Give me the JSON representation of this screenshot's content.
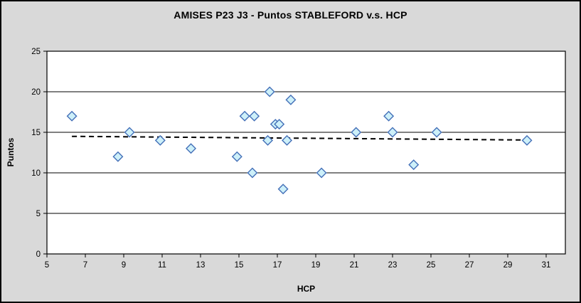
{
  "chart_data": {
    "type": "scatter",
    "title": "AMISES P23 J3 - Puntos STABLEFORD v.s. HCP",
    "xlabel": "HCP",
    "ylabel": "Puntos",
    "xlim": [
      5,
      32
    ],
    "ylim": [
      0,
      25
    ],
    "x_ticks": [
      5,
      7,
      9,
      11,
      13,
      15,
      17,
      19,
      21,
      23,
      25,
      27,
      29,
      31
    ],
    "y_ticks": [
      0,
      5,
      10,
      15,
      20,
      25
    ],
    "grid": "horizontal",
    "legend": "none",
    "points": [
      [
        6.3,
        17
      ],
      [
        8.7,
        12
      ],
      [
        9.3,
        15
      ],
      [
        10.9,
        14
      ],
      [
        12.5,
        13
      ],
      [
        14.9,
        12
      ],
      [
        15.3,
        17
      ],
      [
        15.7,
        10
      ],
      [
        15.8,
        17
      ],
      [
        16.5,
        14
      ],
      [
        16.6,
        20
      ],
      [
        16.9,
        16
      ],
      [
        17.1,
        16
      ],
      [
        17.3,
        8
      ],
      [
        17.5,
        14
      ],
      [
        17.7,
        19
      ],
      [
        19.3,
        10
      ],
      [
        21.1,
        15
      ],
      [
        22.8,
        17
      ],
      [
        23.0,
        15
      ],
      [
        24.1,
        11
      ],
      [
        25.3,
        15
      ],
      [
        30.0,
        14
      ]
    ],
    "trendline": {
      "style": "dashed",
      "x1": 6.3,
      "y1": 14.5,
      "x2": 30.0,
      "y2": 14.05,
      "color": "#000000"
    },
    "marker": {
      "shape": "diamond",
      "fill": "#CDF0F9",
      "stroke": "#4470B8"
    },
    "colors": {
      "background": "#D9D9D9",
      "plot_background": "#FFFFFF",
      "gridline": "#000000",
      "border": "#000000"
    }
  }
}
